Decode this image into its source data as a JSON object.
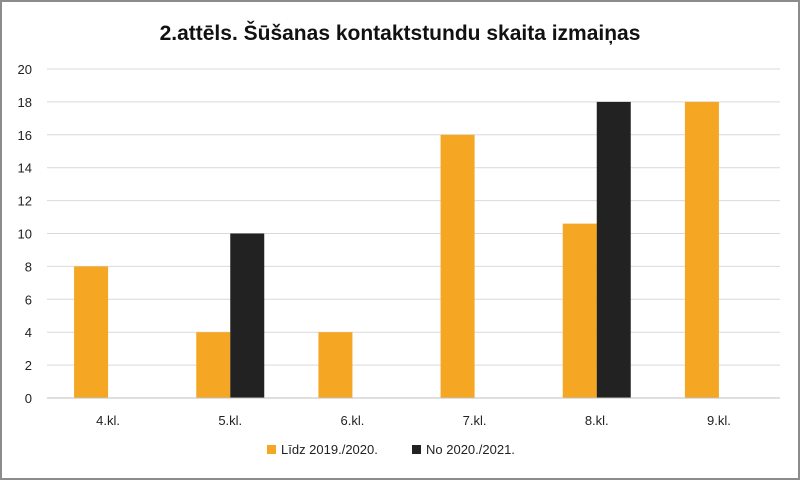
{
  "chart_data": {
    "type": "bar",
    "title": "2.attēls. Šūšanas kontaktstundu skaita izmaiņas",
    "categories": [
      "4.kl.",
      "5.kl.",
      "6.kl.",
      "7.kl.",
      "8.kl.",
      "9.kl."
    ],
    "series": [
      {
        "name": "Līdz 2019./2020.",
        "color": "#f5a623",
        "values": [
          8,
          4,
          4,
          16,
          10.6,
          18
        ]
      },
      {
        "name": "No 2020./2021.",
        "color": "#222222",
        "values": [
          0,
          10,
          0,
          0,
          18,
          0
        ]
      }
    ],
    "ylim": [
      0,
      20
    ],
    "yticks": [
      "0",
      "2",
      "4",
      "6",
      "8",
      "10",
      "12",
      "14",
      "16",
      "18",
      "20"
    ],
    "grid": true,
    "legend_position": "bottom"
  }
}
